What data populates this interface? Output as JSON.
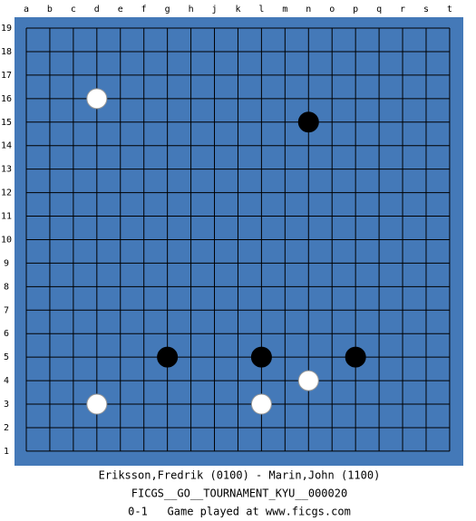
{
  "board": {
    "columns": [
      "a",
      "b",
      "c",
      "d",
      "e",
      "f",
      "g",
      "h",
      "j",
      "k",
      "l",
      "m",
      "n",
      "o",
      "p",
      "q",
      "r",
      "s",
      "t"
    ],
    "rows": [
      19,
      18,
      17,
      16,
      15,
      14,
      13,
      12,
      11,
      10,
      9,
      8,
      7,
      6,
      5,
      4,
      3,
      2,
      1
    ],
    "stones": [
      {
        "color": "white",
        "col": "d",
        "row": 16
      },
      {
        "color": "black",
        "col": "n",
        "row": 15
      },
      {
        "color": "black",
        "col": "g",
        "row": 5
      },
      {
        "color": "black",
        "col": "l",
        "row": 5
      },
      {
        "color": "black",
        "col": "p",
        "row": 5
      },
      {
        "color": "white",
        "col": "n",
        "row": 4
      },
      {
        "color": "white",
        "col": "d",
        "row": 3
      },
      {
        "color": "white",
        "col": "l",
        "row": 3
      }
    ]
  },
  "caption": {
    "players": "Eriksson,Fredrik (0100) - Marin,John (1100)",
    "event": "FICGS__GO__TOURNAMENT_KYU__000020",
    "result": "0-1   Game played at www.ficgs.com"
  }
}
